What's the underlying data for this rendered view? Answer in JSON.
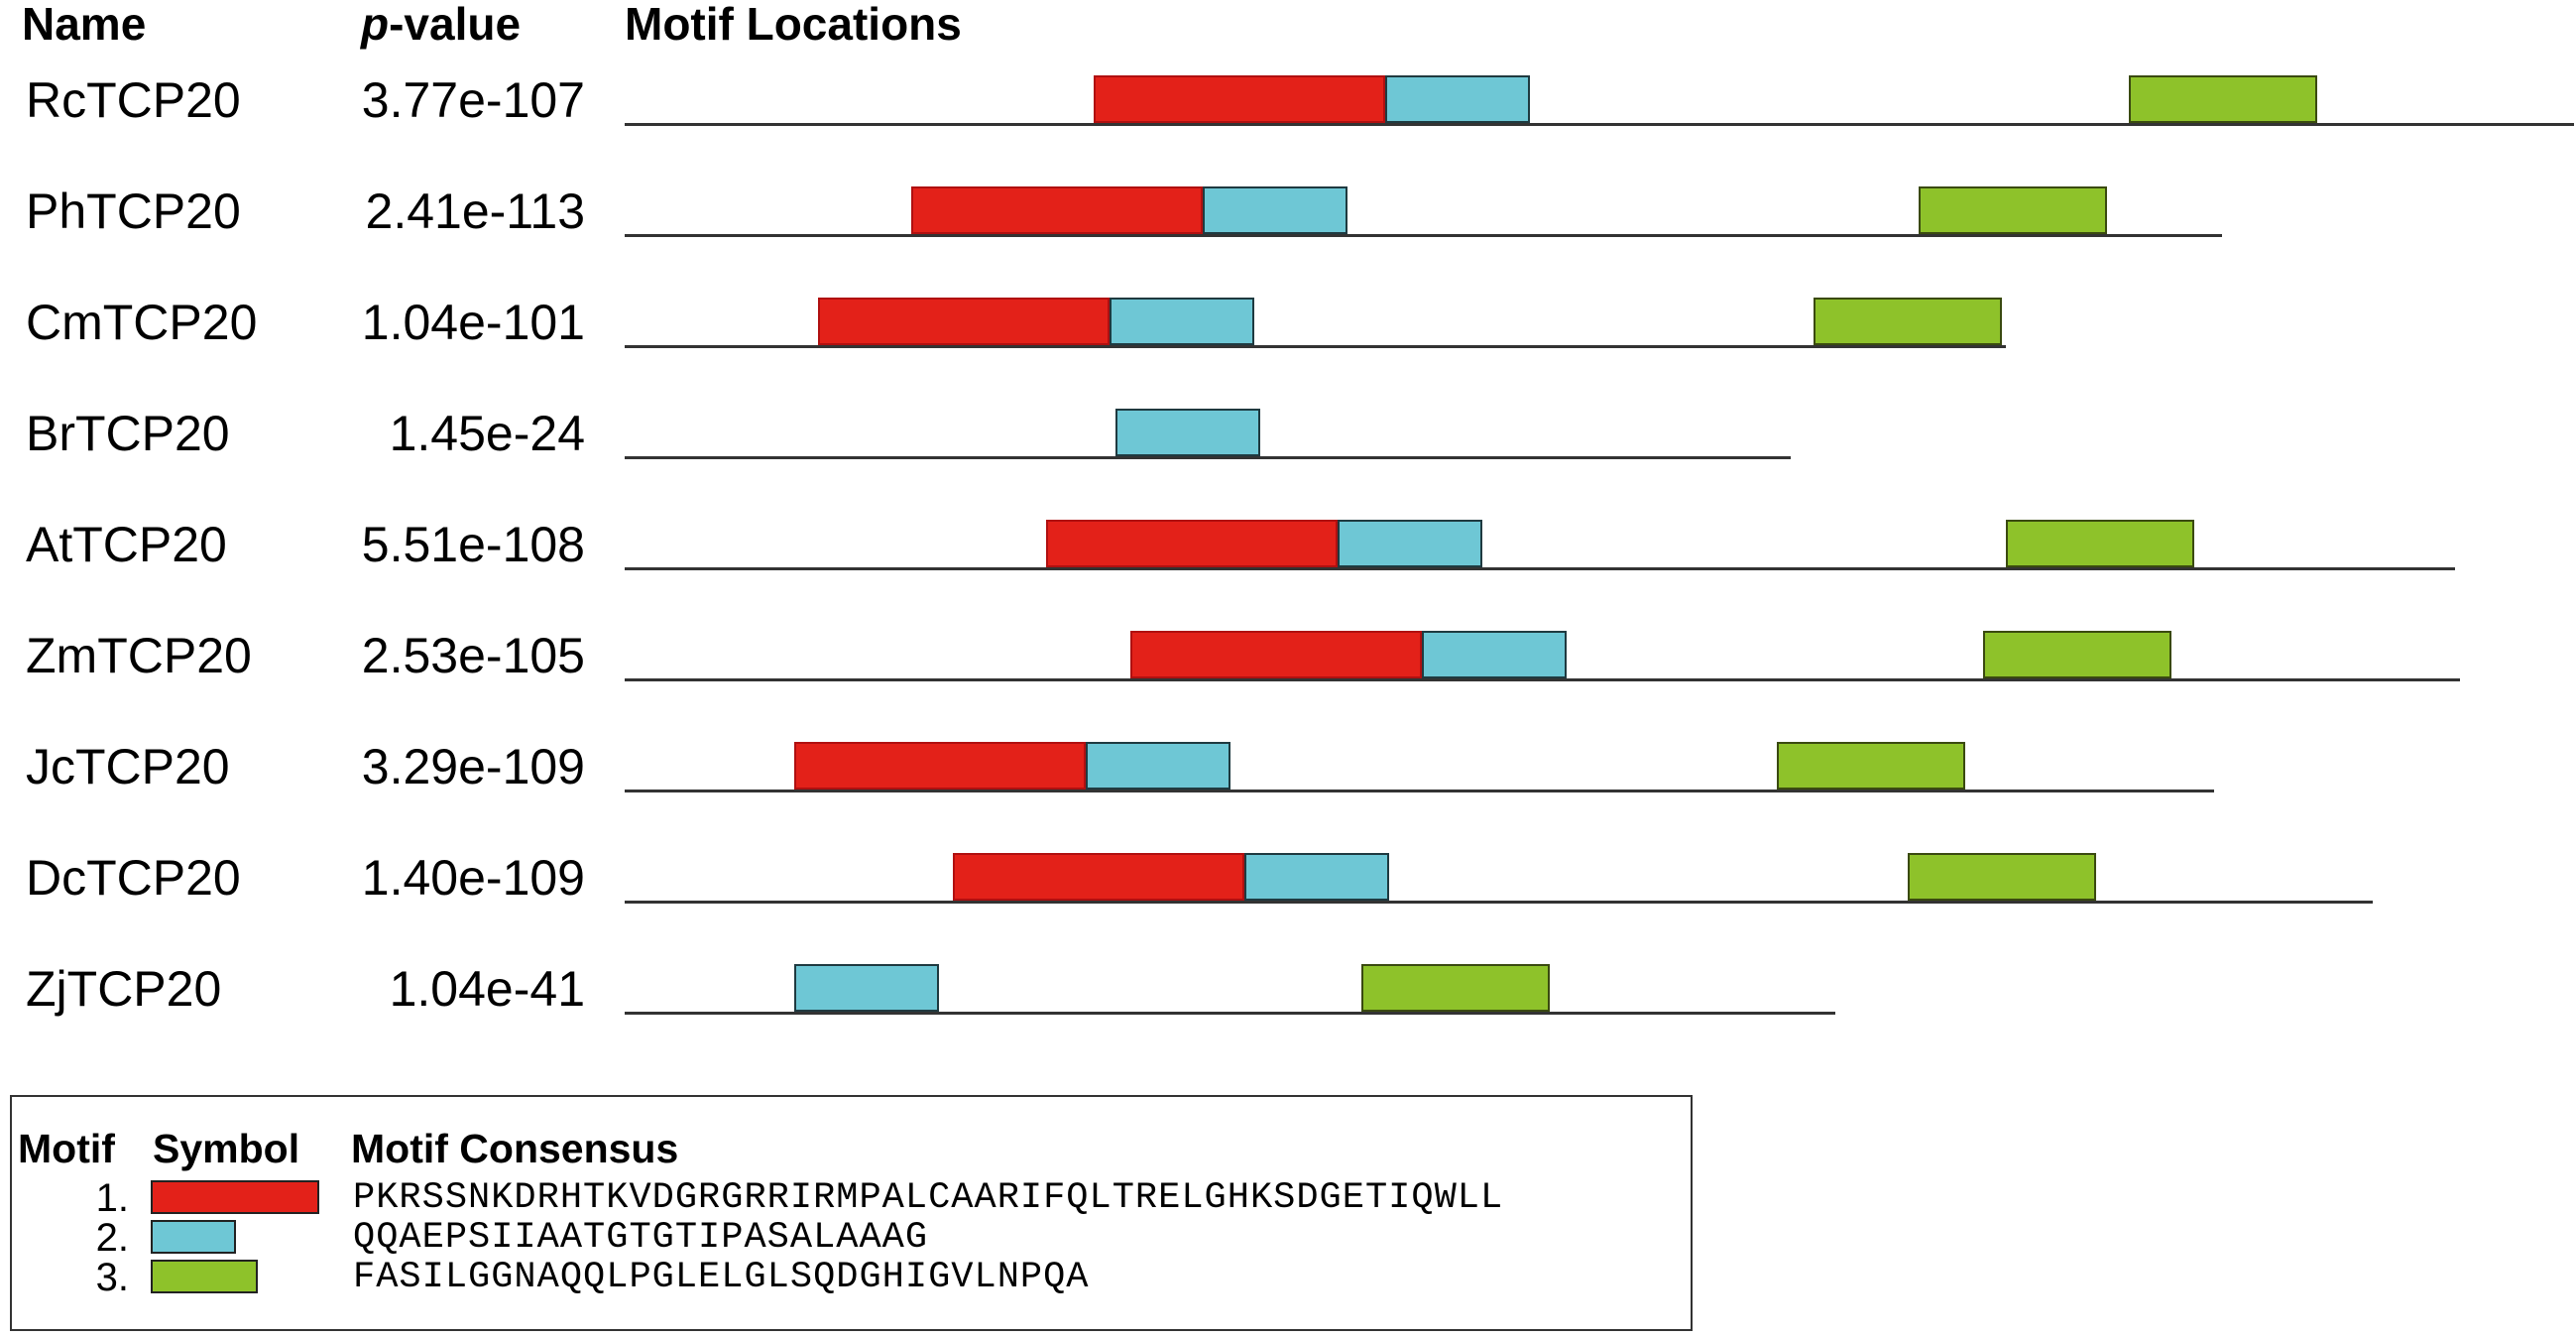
{
  "headers": {
    "name": "Name",
    "p_prefix": "p",
    "p_suffix": "-value",
    "locations": "Motif Locations"
  },
  "colors": {
    "motif_1": "#e32119",
    "motif_2": "#6ec7d5",
    "motif_3": "#8ec22a",
    "track": "#333333"
  },
  "sequences": [
    {
      "name": "RcTCP20",
      "pvalue": "3.77e-107",
      "length": 1966,
      "motifs": [
        {
          "motif": 1,
          "start": 473,
          "end": 767
        },
        {
          "motif": 2,
          "start": 767,
          "end": 913
        },
        {
          "motif": 3,
          "start": 1517,
          "end": 1707
        }
      ]
    },
    {
      "name": "PhTCP20",
      "pvalue": "2.41e-113",
      "length": 1611,
      "motifs": [
        {
          "motif": 1,
          "start": 289,
          "end": 583
        },
        {
          "motif": 2,
          "start": 583,
          "end": 729
        },
        {
          "motif": 3,
          "start": 1305,
          "end": 1495
        }
      ]
    },
    {
      "name": "CmTCP20",
      "pvalue": "1.04e-101",
      "length": 1393,
      "motifs": [
        {
          "motif": 1,
          "start": 195,
          "end": 489
        },
        {
          "motif": 2,
          "start": 489,
          "end": 635
        },
        {
          "motif": 3,
          "start": 1199,
          "end": 1389
        }
      ]
    },
    {
      "name": "BrTCP20",
      "pvalue": "1.45e-24",
      "length": 1176,
      "motifs": [
        {
          "motif": 2,
          "start": 495,
          "end": 641
        }
      ]
    },
    {
      "name": "AtTCP20",
      "pvalue": "5.51e-108",
      "length": 1846,
      "motifs": [
        {
          "motif": 1,
          "start": 425,
          "end": 719
        },
        {
          "motif": 2,
          "start": 719,
          "end": 865
        },
        {
          "motif": 3,
          "start": 1393,
          "end": 1583
        }
      ]
    },
    {
      "name": "ZmTCP20",
      "pvalue": "2.53e-105",
      "length": 1851,
      "motifs": [
        {
          "motif": 1,
          "start": 510,
          "end": 804
        },
        {
          "motif": 2,
          "start": 804,
          "end": 950
        },
        {
          "motif": 3,
          "start": 1370,
          "end": 1560
        }
      ]
    },
    {
      "name": "JcTCP20",
      "pvalue": "3.29e-109",
      "length": 1603,
      "motifs": [
        {
          "motif": 1,
          "start": 171,
          "end": 465
        },
        {
          "motif": 2,
          "start": 465,
          "end": 611
        },
        {
          "motif": 3,
          "start": 1162,
          "end": 1352
        }
      ]
    },
    {
      "name": "DcTCP20",
      "pvalue": "1.40e-109",
      "length": 1763,
      "motifs": [
        {
          "motif": 1,
          "start": 331,
          "end": 625
        },
        {
          "motif": 2,
          "start": 625,
          "end": 771
        },
        {
          "motif": 3,
          "start": 1294,
          "end": 1484
        }
      ]
    },
    {
      "name": "ZjTCP20",
      "pvalue": "1.04e-41",
      "length": 1221,
      "motifs": [
        {
          "motif": 2,
          "start": 171,
          "end": 317
        },
        {
          "motif": 3,
          "start": 743,
          "end": 933
        }
      ]
    }
  ],
  "legend": {
    "col_motif": "Motif",
    "col_symbol": "Symbol",
    "col_consensus": "Motif Consensus",
    "rows": [
      {
        "num": "1.",
        "motif": 1,
        "consensus": "PKRSSNKDRHTKVDGRGRRIRMPALCAARIFQLTRELGHKSDGETIQWLL"
      },
      {
        "num": "2.",
        "motif": 2,
        "consensus": "QQAEPSIIAATGTGTIPASALAAAG"
      },
      {
        "num": "3.",
        "motif": 3,
        "consensus": "FASILGGNAQQLPGLELGLSQDGHIGVLNPQA"
      }
    ]
  }
}
